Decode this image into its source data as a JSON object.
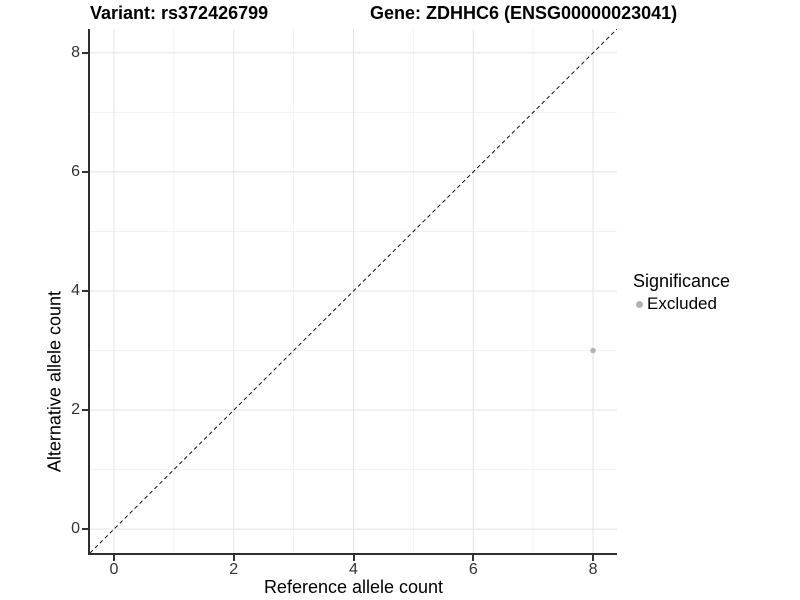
{
  "titles": {
    "left": "Variant: rs372426799",
    "right": "Gene: ZDHHC6 (ENSG00000023041)"
  },
  "chart_data": {
    "type": "scatter",
    "xlabel": "Reference allele count",
    "ylabel": "Alternative allele count",
    "xlim": [
      -0.4,
      8.4
    ],
    "ylim": [
      -0.4,
      8.4
    ],
    "x_ticks": [
      0,
      2,
      4,
      6,
      8
    ],
    "y_ticks": [
      0,
      2,
      4,
      6,
      8
    ],
    "x_minor_gridlines": [
      1,
      3,
      5,
      7
    ],
    "y_minor_gridlines": [
      1,
      3,
      5,
      7
    ],
    "grid": "on",
    "identity_line": {
      "equation": "y = x",
      "style": "dashed",
      "color": "#111111"
    },
    "series": [
      {
        "name": "Excluded",
        "color": "#b3b3b3",
        "points": [
          [
            8,
            3
          ]
        ],
        "point_radius": 2.8
      }
    ],
    "legend": {
      "title": "Significance",
      "position": "right",
      "items": [
        {
          "label": "Excluded",
          "color": "#b3b3b3",
          "marker": "circle"
        }
      ]
    }
  },
  "colors": {
    "background": "#ffffff",
    "axis_line": "#2e2e2e",
    "tick": "#333333",
    "tick_label": "#333333",
    "grid_major": "#e3e3e3",
    "grid_minor": "#f1f1f1"
  }
}
